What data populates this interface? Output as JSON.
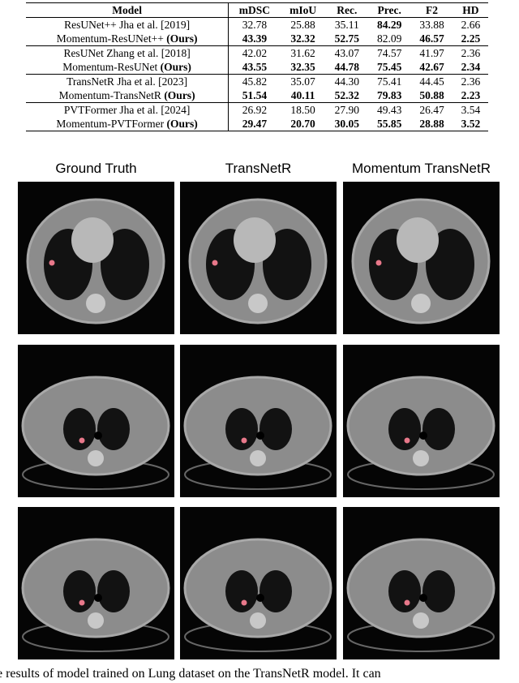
{
  "table": {
    "columns": [
      "Model",
      "mDSC",
      "mIoU",
      "Rec.",
      "Prec.",
      "F2",
      "HD"
    ],
    "rows": [
      {
        "model": "ResUNet++ Jha et al. [2019]",
        "cells": [
          "32.78",
          "25.88",
          "35.11",
          "84.29",
          "33.88",
          "2.66"
        ],
        "bold": [
          3
        ]
      },
      {
        "model": "Momentum-ResUNet++",
        "tag": "(Ours)",
        "cells": [
          "43.39",
          "32.32",
          "52.75",
          "82.09",
          "46.57",
          "2.25"
        ],
        "bold": [
          0,
          1,
          2,
          4,
          5
        ]
      },
      {
        "model": "ResUNet Zhang et al. [2018]",
        "cells": [
          "42.02",
          "31.62",
          "43.07",
          "74.57",
          "41.97",
          "2.36"
        ],
        "bold": []
      },
      {
        "model": "Momentum-ResUNet",
        "tag": "(Ours)",
        "cells": [
          "43.55",
          "32.35",
          "44.78",
          "75.45",
          "42.67",
          "2.34"
        ],
        "bold": [
          0,
          1,
          2,
          3,
          4,
          5
        ]
      },
      {
        "model": "TransNetR Jha et al. [2023]",
        "cells": [
          "45.82",
          "35.07",
          "44.30",
          "75.41",
          "44.45",
          "2.36"
        ],
        "bold": []
      },
      {
        "model": "Momentum-TransNetR",
        "tag": "(Ours)",
        "cells": [
          "51.54",
          "40.11",
          "52.32",
          "79.83",
          "50.88",
          "2.23"
        ],
        "bold": [
          0,
          1,
          2,
          3,
          4,
          5
        ]
      },
      {
        "model": "PVTFormer Jha et al. [2024]",
        "cells": [
          "26.92",
          "18.50",
          "27.90",
          "49.43",
          "26.47",
          "3.54"
        ],
        "bold": []
      },
      {
        "model": "Momentum-PVTFormer",
        "tag": "(Ours)",
        "cells": [
          "29.47",
          "20.70",
          "30.05",
          "55.85",
          "28.88",
          "3.52"
        ],
        "bold": [
          0,
          1,
          2,
          3,
          4,
          5
        ]
      }
    ]
  },
  "figure": {
    "columns": [
      "Ground Truth",
      "TransNetR",
      "Momentum TransNetR"
    ]
  },
  "caption": "e results of model trained on Lung dataset on the TransNetR model. It can"
}
